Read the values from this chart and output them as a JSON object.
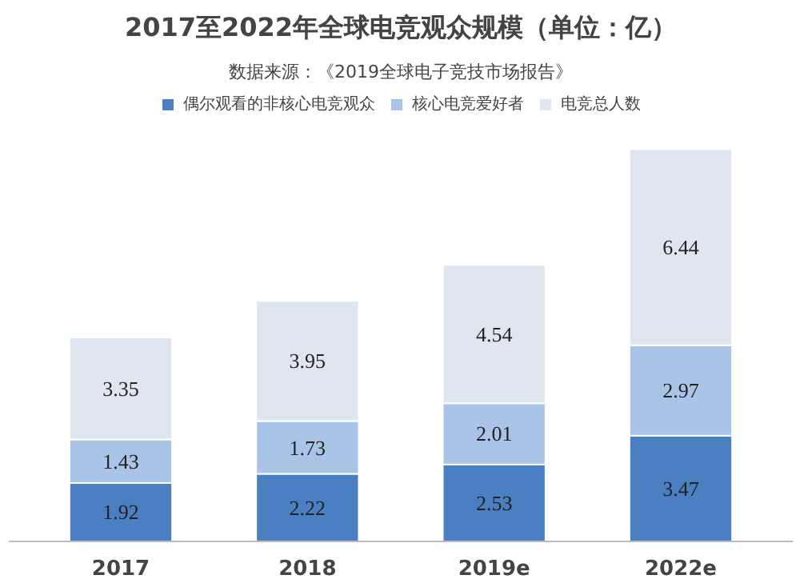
{
  "chart_data": {
    "type": "bar",
    "title": "2017至2022年全球电竞观众规模（单位：亿）",
    "subtitle": "数据来源：《2019全球电子竞技市场报告》",
    "categories": [
      "2017",
      "2018",
      "2019e",
      "2022e"
    ],
    "stacked": true,
    "data_labels": true,
    "legend": "top",
    "grid": false,
    "series": [
      {
        "name": "偶尔观看的非核心电竞观众",
        "color": "#4a7fc1",
        "values": [
          1.92,
          2.22,
          2.53,
          3.47
        ]
      },
      {
        "name": "核心电竞爱好者",
        "color": "#a9c4e6",
        "values": [
          1.43,
          1.73,
          2.01,
          2.97
        ]
      },
      {
        "name": "电竞总人数",
        "color": "#dfe6f0",
        "values": [
          3.35,
          3.95,
          4.54,
          6.44
        ]
      }
    ]
  }
}
